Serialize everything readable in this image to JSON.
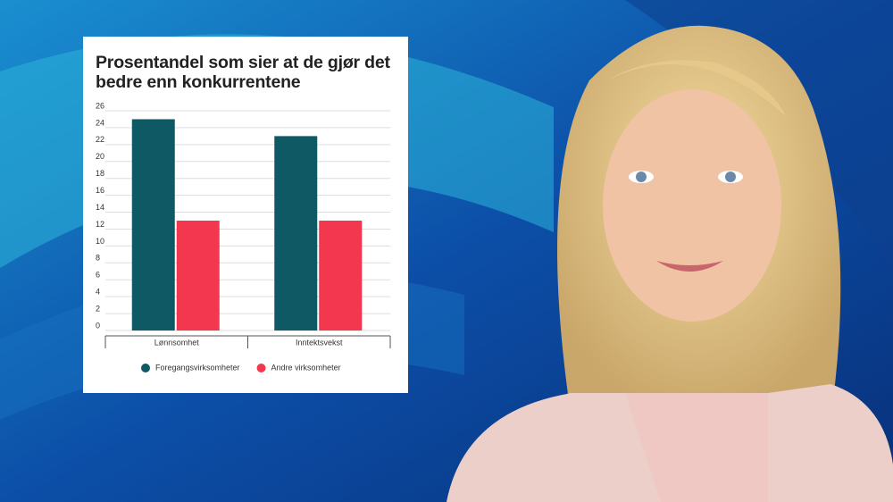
{
  "chart_data": {
    "type": "bar",
    "title": "Prosentandel som sier at de gjør det bedre enn konkurrentene",
    "categories": [
      "Lønnsomhet",
      "Inntektsvekst"
    ],
    "series": [
      {
        "name": "Foregangsvirksomheter",
        "color": "#0f5964",
        "values": [
          25,
          23
        ]
      },
      {
        "name": "Andre virksomheter",
        "color": "#f2374f",
        "values": [
          13,
          13
        ]
      }
    ],
    "ylim": [
      0,
      26
    ],
    "yticks": [
      0,
      2,
      4,
      6,
      8,
      10,
      12,
      14,
      16,
      18,
      20,
      22,
      24,
      26
    ],
    "grid": true
  }
}
